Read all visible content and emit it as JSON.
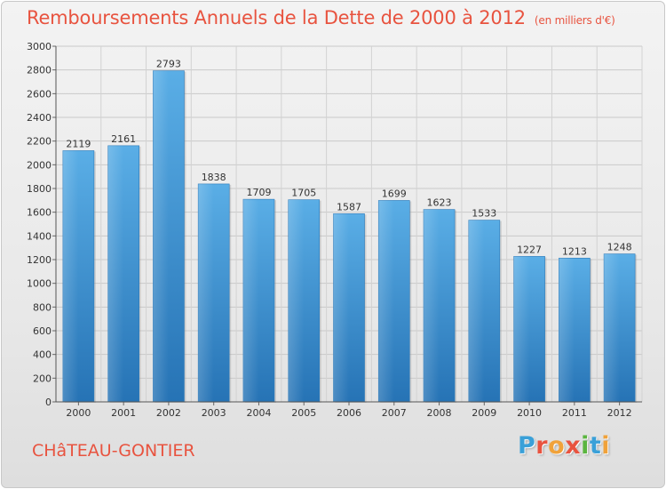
{
  "header": {
    "title": "Remboursements Annuels de la Dette de 2000 à 2012",
    "unit": "(en milliers d'€)"
  },
  "footer": {
    "commune": "CHâTEAU-GONTIER",
    "logo": "Proxiti",
    "logo_colors": [
      "#3aa0d8",
      "#e8533f",
      "#f0a23a",
      "#e8533f",
      "#5bb540",
      "#3aa0d8",
      "#f0a23a"
    ]
  },
  "chart_data": {
    "type": "bar",
    "title": "Remboursements Annuels de la Dette de 2000 à 2012",
    "xlabel": "",
    "ylabel": "",
    "categories": [
      "2000",
      "2001",
      "2002",
      "2003",
      "2004",
      "2005",
      "2006",
      "2007",
      "2008",
      "2009",
      "2010",
      "2011",
      "2012"
    ],
    "values": [
      2119,
      2161,
      2793,
      1838,
      1709,
      1705,
      1587,
      1699,
      1623,
      1533,
      1227,
      1213,
      1248
    ],
    "ylim": [
      0,
      3000
    ],
    "yticks": [
      "0",
      "200",
      "400",
      "600",
      "800",
      "1000",
      "1200",
      "1400",
      "1600",
      "1800",
      "2000",
      "2200",
      "2400",
      "2600",
      "2800",
      "3000"
    ],
    "grid": true,
    "bar_color": "#3d8fd0"
  }
}
